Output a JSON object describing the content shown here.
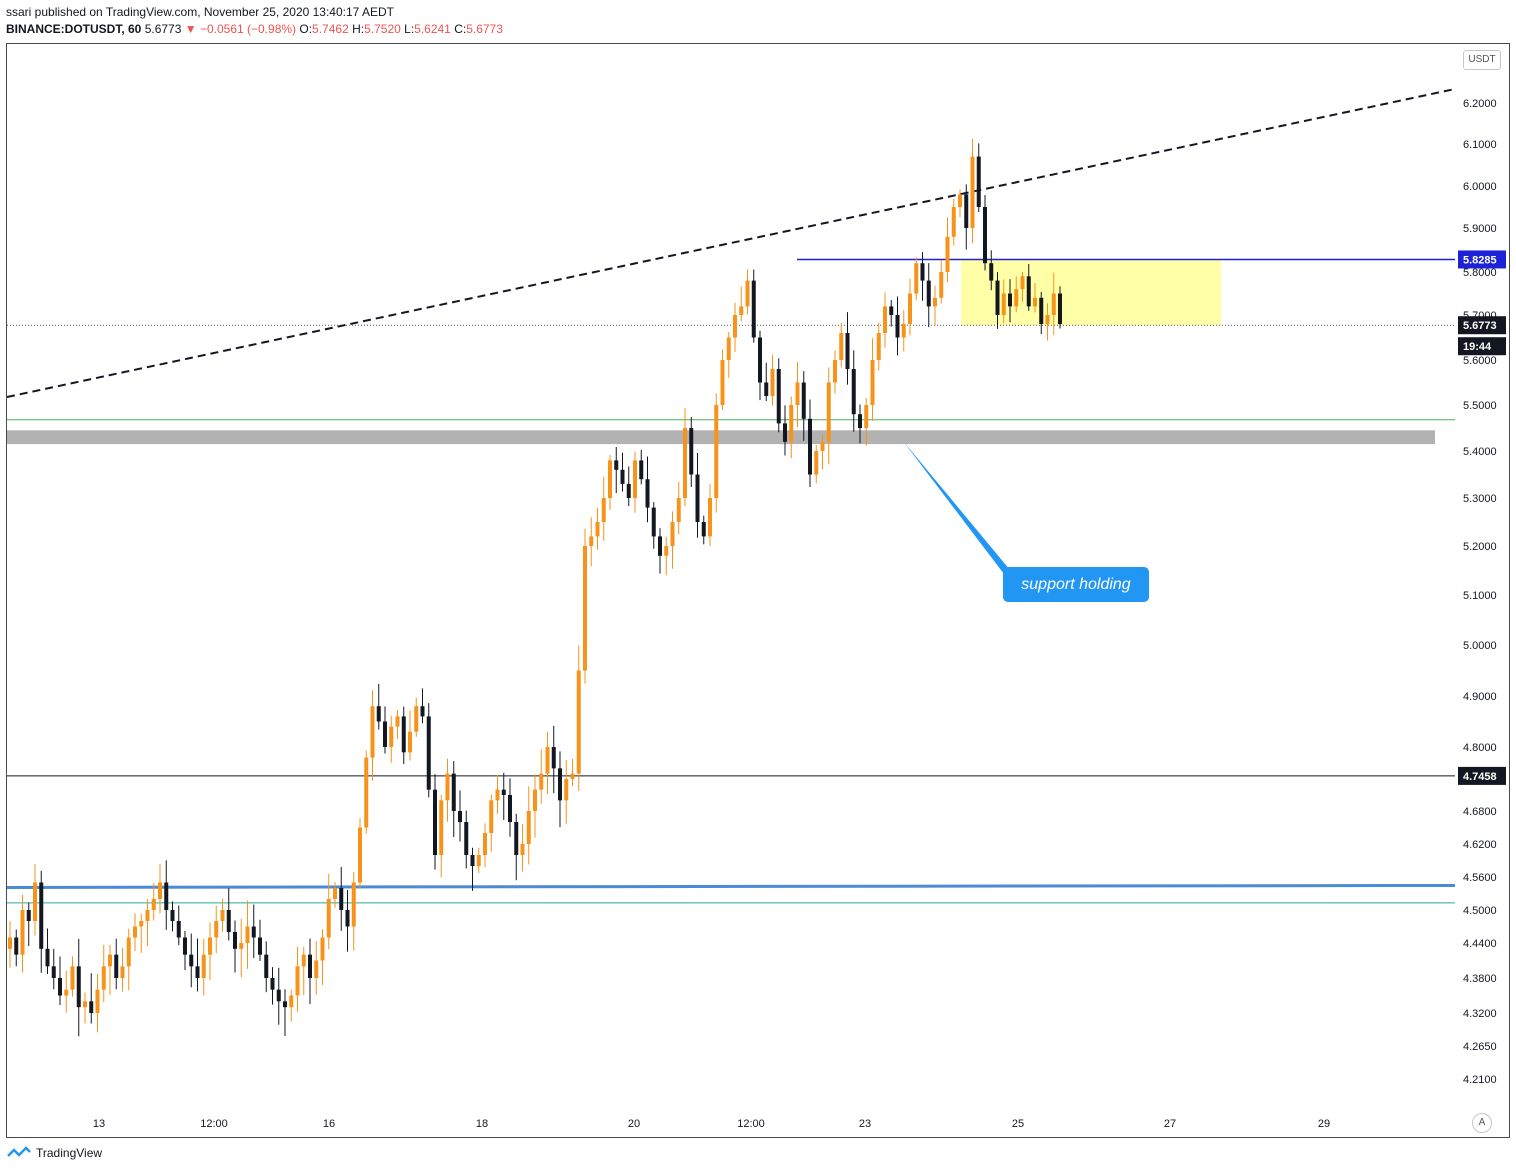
{
  "header": {
    "published": "ssari published on TradingView.com, November 25, 2020 13:40:17 AEDT",
    "symbol": "BINANCE:DOTUSDT, 60",
    "last": "5.6773",
    "change": "▼ −0.0561 (−0.98%)",
    "o_label": "O:",
    "o_value": "5.7462",
    "h_label": "H:",
    "h_value": "5.7520",
    "l_label": "L:",
    "l_value": "5.6241",
    "c_label": "C:",
    "c_value": "5.6773"
  },
  "currency_button": "USDT",
  "auto_button": "A",
  "footer": {
    "brand": "TradingView"
  },
  "annotation": {
    "text": "support holding"
  },
  "colors": {
    "up": "#f7931a",
    "down": "#131722",
    "support_zone": "#b2b2b2",
    "resistance_line": "#1e22d6",
    "blue_support": "#4a8ad6",
    "yellow_zone": "#ffff9e",
    "callout": "#2196f3"
  },
  "chart_data": {
    "type": "candlestick",
    "title": "",
    "xlabel": "",
    "ylabel": "",
    "y_ticks": [
      "6.2000",
      "6.1000",
      "6.0000",
      "5.9000",
      "5.8000",
      "5.7000",
      "5.6000",
      "5.5000",
      "5.4000",
      "5.3000",
      "5.2000",
      "5.1000",
      "5.0000",
      "4.9000",
      "4.8000",
      "4.6800",
      "4.6200",
      "4.5600",
      "4.5000",
      "4.4400",
      "4.3800",
      "4.3200",
      "4.2650",
      "4.2100"
    ],
    "x_ticks": [
      "13",
      "12:00",
      "16",
      "18",
      "20",
      "12:00",
      "23",
      "25",
      "27",
      "29"
    ],
    "price_labels": [
      {
        "value": "5.8285",
        "kind": "resistance"
      },
      {
        "value": "5.6773",
        "kind": "last"
      },
      {
        "value": "19:44",
        "kind": "countdown"
      },
      {
        "value": "4.7458",
        "kind": "level"
      }
    ],
    "levels": {
      "resistance": 5.8285,
      "last_price": 5.6773,
      "black_line": 4.7458,
      "green_line": 5.468,
      "support_zone": [
        5.415,
        5.445
      ],
      "blue_support": 4.541,
      "teal_line": 4.513
    },
    "trendline": {
      "from_y": 5.52,
      "to_y": 6.23,
      "style": "dashed"
    },
    "yellow_zone": [
      5.677,
      5.8285
    ],
    "price_path": [
      4.45,
      4.42,
      4.5,
      4.48,
      4.55,
      4.43,
      4.4,
      4.38,
      4.35,
      4.36,
      4.4,
      4.33,
      4.34,
      4.32,
      4.36,
      4.4,
      4.42,
      4.38,
      4.4,
      4.45,
      4.47,
      4.48,
      4.5,
      4.52,
      4.55,
      4.5,
      4.48,
      4.45,
      4.42,
      4.4,
      4.38,
      4.42,
      4.45,
      4.48,
      4.5,
      4.46,
      4.43,
      4.44,
      4.47,
      4.45,
      4.42,
      4.38,
      4.36,
      4.34,
      4.33,
      4.35,
      4.4,
      4.42,
      4.38,
      4.41,
      4.45,
      4.52,
      4.54,
      4.5,
      4.47,
      4.55,
      4.65,
      4.78,
      4.88,
      4.85,
      4.8,
      4.84,
      4.86,
      4.79,
      4.83,
      4.88,
      4.86,
      4.72,
      4.6,
      4.7,
      4.75,
      4.68,
      4.66,
      4.6,
      4.58,
      4.6,
      4.64,
      4.7,
      4.72,
      4.71,
      4.66,
      4.6,
      4.62,
      4.68,
      4.72,
      4.75,
      4.8,
      4.76,
      4.7,
      4.74,
      4.75,
      4.95,
      5.2,
      5.22,
      5.25,
      5.3,
      5.38,
      5.36,
      5.33,
      5.3,
      5.38,
      5.34,
      5.28,
      5.22,
      5.18,
      5.2,
      5.25,
      5.3,
      5.45,
      5.35,
      5.25,
      5.22,
      5.3,
      5.5,
      5.6,
      5.65,
      5.7,
      5.72,
      5.78,
      5.65,
      5.55,
      5.52,
      5.58,
      5.46,
      5.42,
      5.5,
      5.55,
      5.47,
      5.35,
      5.4,
      5.42,
      5.55,
      5.6,
      5.66,
      5.58,
      5.48,
      5.45,
      5.5,
      5.6,
      5.66,
      5.72,
      5.7,
      5.65,
      5.68,
      5.75,
      5.82,
      5.78,
      5.72,
      5.74,
      5.8,
      5.88,
      5.95,
      5.98,
      5.9,
      6.07,
      5.95,
      5.82,
      5.78,
      5.7,
      5.75,
      5.72,
      5.76,
      5.79,
      5.72,
      5.74,
      5.68,
      5.7,
      5.75,
      5.68
    ]
  }
}
